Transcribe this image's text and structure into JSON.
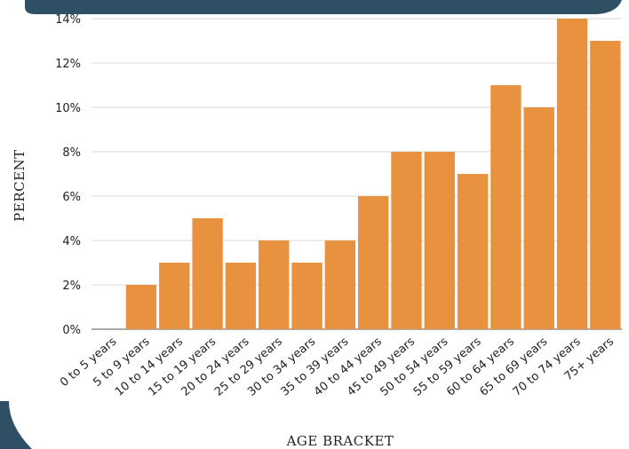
{
  "colors": {
    "bar": "#E8913F",
    "frame": "#2F4F64",
    "grid": "#d9d9d9"
  },
  "chart_data": {
    "type": "bar",
    "xlabel": "AGE BRACKET",
    "ylabel": "PERCENT",
    "ylim": [
      0,
      14
    ],
    "yticks": [
      "0%",
      "2%",
      "4%",
      "6%",
      "8%",
      "10%",
      "12%",
      "14%"
    ],
    "grid": true,
    "categories": [
      "0 to 5 years",
      "5 to 9 years",
      "10 to 14 years",
      "15 to 19 years",
      "20 to 24 years",
      "25 to 29 years",
      "30 to 34 years",
      "35 to 39 years",
      "40 to 44 years",
      "45 to 49 years",
      "50 to 54 years",
      "55 to 59 years",
      "60 to 64 years",
      "65 to 69 years",
      "70 to 74 years",
      "75+ years"
    ],
    "values": [
      0,
      2,
      3,
      5,
      3,
      4,
      3,
      4,
      6,
      8,
      8,
      7,
      11,
      10,
      14,
      13
    ]
  }
}
